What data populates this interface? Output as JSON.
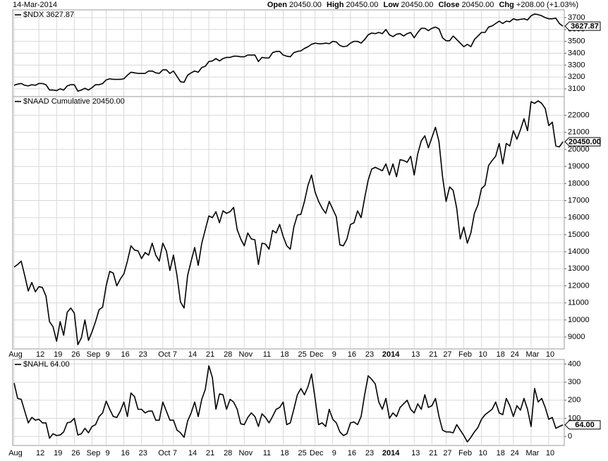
{
  "header": {
    "date": "14-Mar-2014",
    "fields": [
      {
        "label": "Open",
        "value": "20450.00"
      },
      {
        "label": "High",
        "value": "20450.00"
      },
      {
        "label": "Low",
        "value": "20450.00"
      },
      {
        "label": "Close",
        "value": "20450.00"
      },
      {
        "label": "Chg",
        "value": "+208.00 (+1.03%)"
      }
    ]
  },
  "chart_data": [
    {
      "type": "line",
      "ylim": [
        3035,
        3765
      ],
      "yticks": [
        3100,
        3200,
        3300,
        3400,
        3500,
        3600,
        3700
      ],
      "grid": true,
      "series": [
        {
          "name": "$NDX 3627.87",
          "color": "#000000",
          "last_label": "3627.87",
          "values": [
            3130,
            3140,
            3145,
            3130,
            3125,
            3135,
            3130,
            3145,
            3145,
            3135,
            3090,
            3090,
            3085,
            3100,
            3090,
            3125,
            3135,
            3135,
            3080,
            3090,
            3105,
            3090,
            3110,
            3135,
            3135,
            3145,
            3175,
            3185,
            3180,
            3180,
            3180,
            3185,
            3215,
            3240,
            3235,
            3230,
            3230,
            3230,
            3250,
            3250,
            3235,
            3230,
            3260,
            3260,
            3230,
            3250,
            3205,
            3160,
            3155,
            3215,
            3235,
            3250,
            3240,
            3280,
            3290,
            3330,
            3335,
            3355,
            3335,
            3355,
            3365,
            3365,
            3375,
            3375,
            3370,
            3370,
            3385,
            3385,
            3385,
            3330,
            3365,
            3360,
            3360,
            3405,
            3415,
            3415,
            3385,
            3375,
            3370,
            3405,
            3415,
            3420,
            3440,
            3455,
            3475,
            3485,
            3480,
            3480,
            3485,
            3480,
            3500,
            3495,
            3465,
            3455,
            3460,
            3485,
            3500,
            3500,
            3485,
            3515,
            3555,
            3570,
            3565,
            3575,
            3565,
            3600,
            3555,
            3540,
            3560,
            3565,
            3545,
            3565,
            3575,
            3530,
            3575,
            3610,
            3610,
            3590,
            3610,
            3620,
            3605,
            3530,
            3505,
            3505,
            3545,
            3515,
            3485,
            3455,
            3475,
            3455,
            3515,
            3545,
            3575,
            3575,
            3620,
            3630,
            3650,
            3670,
            3650,
            3670,
            3665,
            3690,
            3680,
            3685,
            3690,
            3680,
            3715,
            3730,
            3725,
            3715,
            3700,
            3690,
            3690,
            3695,
            3650,
            3627.87
          ]
        }
      ]
    },
    {
      "type": "line",
      "ylim": [
        8300,
        23100
      ],
      "yticks": [
        9000,
        10000,
        11000,
        12000,
        13000,
        14000,
        15000,
        16000,
        17000,
        18000,
        19000,
        20000,
        21000,
        22000
      ],
      "grid": true,
      "categories": [
        "Aug",
        null,
        null,
        null,
        null,
        null,
        null,
        "12",
        null,
        null,
        null,
        null,
        "19",
        null,
        null,
        null,
        null,
        "26",
        null,
        null,
        null,
        null,
        "Sep",
        null,
        null,
        null,
        "9",
        null,
        null,
        null,
        null,
        "16",
        null,
        null,
        null,
        null,
        "23",
        null,
        null,
        null,
        null,
        null,
        "Oct",
        null,
        null,
        "7",
        null,
        null,
        null,
        null,
        "14",
        null,
        null,
        null,
        null,
        "21",
        null,
        null,
        null,
        null,
        "28",
        null,
        null,
        null,
        null,
        "Nov",
        null,
        null,
        null,
        null,
        null,
        "11",
        null,
        null,
        null,
        null,
        "18",
        null,
        null,
        null,
        null,
        "25",
        null,
        null,
        null,
        "Dec",
        null,
        null,
        null,
        null,
        "9",
        null,
        null,
        null,
        null,
        "16",
        null,
        null,
        null,
        null,
        "23",
        null,
        null,
        null,
        null,
        null,
        "2014",
        null,
        null,
        null,
        null,
        null,
        null,
        "13",
        null,
        null,
        null,
        null,
        "21",
        null,
        null,
        null,
        "27",
        null,
        null,
        null,
        null,
        "Feb",
        null,
        null,
        null,
        null,
        "10",
        null,
        null,
        null,
        null,
        "18",
        null,
        null,
        null,
        "24",
        null,
        null,
        null,
        null,
        "Mar",
        null,
        null,
        null,
        null,
        "10",
        null,
        null,
        null,
        null
      ],
      "series": [
        {
          "name": "$NAAD Cumulative 20450.00",
          "color": "#000000",
          "last_label": "20450.00",
          "values": [
            13100,
            13250,
            13450,
            12600,
            11700,
            12200,
            11650,
            11950,
            11900,
            11400,
            9900,
            9600,
            8750,
            9900,
            9100,
            10450,
            10700,
            10400,
            8550,
            8950,
            10000,
            8800,
            9300,
            9900,
            10600,
            10750,
            12000,
            12850,
            12750,
            12000,
            12400,
            12700,
            13450,
            14350,
            14100,
            14050,
            13600,
            13950,
            13800,
            14500,
            13800,
            13450,
            14500,
            14050,
            12900,
            13800,
            12600,
            11050,
            10700,
            12600,
            13450,
            14250,
            13200,
            14500,
            15300,
            16100,
            16000,
            16350,
            15700,
            16400,
            16250,
            16350,
            16600,
            15300,
            14750,
            14350,
            15100,
            14750,
            14700,
            13250,
            14500,
            14450,
            14150,
            15250,
            15100,
            15600,
            14900,
            14350,
            14150,
            15450,
            16150,
            16200,
            16950,
            17900,
            18500,
            17500,
            16950,
            16550,
            16250,
            16950,
            16500,
            16050,
            14400,
            14350,
            14750,
            15600,
            15700,
            16400,
            16000,
            17150,
            18200,
            18850,
            18950,
            18850,
            18750,
            19150,
            18500,
            19150,
            18400,
            19400,
            19350,
            19250,
            19600,
            18500,
            19750,
            20500,
            20800,
            20100,
            20700,
            21300,
            20450,
            18400,
            16950,
            17800,
            17600,
            16550,
            14750,
            15450,
            14500,
            15100,
            16250,
            16750,
            17700,
            17900,
            19050,
            19350,
            19600,
            20350,
            19150,
            20350,
            20200,
            21100,
            20600,
            21150,
            21800,
            21100,
            22800,
            22700,
            22850,
            22700,
            22400,
            21400,
            21600,
            20200,
            20150,
            20450
          ]
        }
      ]
    },
    {
      "type": "line",
      "ylim": [
        -50,
        425
      ],
      "yticks": [
        0,
        100,
        200,
        300,
        400
      ],
      "grid": true,
      "categories": [
        "Aug",
        null,
        null,
        null,
        null,
        null,
        null,
        "12",
        null,
        null,
        null,
        null,
        "19",
        null,
        null,
        null,
        null,
        "26",
        null,
        null,
        null,
        null,
        "Sep",
        null,
        null,
        null,
        "9",
        null,
        null,
        null,
        null,
        "16",
        null,
        null,
        null,
        null,
        "23",
        null,
        null,
        null,
        null,
        null,
        "Oct",
        null,
        null,
        "7",
        null,
        null,
        null,
        null,
        "14",
        null,
        null,
        null,
        null,
        "21",
        null,
        null,
        null,
        null,
        "28",
        null,
        null,
        null,
        null,
        "Nov",
        null,
        null,
        null,
        null,
        null,
        "11",
        null,
        null,
        null,
        null,
        "18",
        null,
        null,
        null,
        null,
        "25",
        null,
        null,
        null,
        "Dec",
        null,
        null,
        null,
        null,
        "9",
        null,
        null,
        null,
        null,
        "16",
        null,
        null,
        null,
        null,
        "23",
        null,
        null,
        null,
        null,
        null,
        "2014",
        null,
        null,
        null,
        null,
        null,
        null,
        "13",
        null,
        null,
        null,
        null,
        "21",
        null,
        null,
        null,
        "27",
        null,
        null,
        null,
        null,
        "Feb",
        null,
        null,
        null,
        null,
        "10",
        null,
        null,
        null,
        null,
        "18",
        null,
        null,
        null,
        "24",
        null,
        null,
        null,
        null,
        "Mar",
        null,
        null,
        null,
        null,
        "10",
        null,
        null,
        null,
        null
      ],
      "series": [
        {
          "name": "$NAHL 64.00",
          "color": "#000000",
          "last_label": "64.00",
          "values": [
            295,
            210,
            205,
            140,
            75,
            105,
            90,
            95,
            75,
            75,
            -10,
            15,
            5,
            8,
            25,
            75,
            80,
            100,
            8,
            15,
            45,
            20,
            55,
            65,
            110,
            130,
            195,
            150,
            110,
            105,
            140,
            190,
            110,
            240,
            220,
            150,
            150,
            130,
            140,
            140,
            90,
            90,
            190,
            140,
            90,
            90,
            35,
            20,
            -5,
            85,
            130,
            190,
            110,
            205,
            260,
            390,
            325,
            150,
            235,
            230,
            150,
            205,
            190,
            150,
            70,
            65,
            105,
            130,
            110,
            55,
            125,
            105,
            75,
            110,
            150,
            160,
            190,
            65,
            75,
            150,
            230,
            265,
            230,
            275,
            345,
            210,
            65,
            75,
            55,
            150,
            95,
            75,
            25,
            5,
            15,
            75,
            80,
            65,
            110,
            230,
            335,
            315,
            290,
            190,
            150,
            210,
            100,
            130,
            110,
            160,
            180,
            200,
            150,
            130,
            180,
            150,
            230,
            160,
            170,
            210,
            110,
            35,
            25,
            25,
            20,
            65,
            35,
            5,
            -30,
            -5,
            25,
            50,
            95,
            120,
            135,
            150,
            190,
            130,
            120,
            210,
            170,
            110,
            170,
            145,
            210,
            150,
            55,
            265,
            190,
            210,
            160,
            95,
            105,
            45,
            55,
            64
          ]
        }
      ]
    }
  ]
}
